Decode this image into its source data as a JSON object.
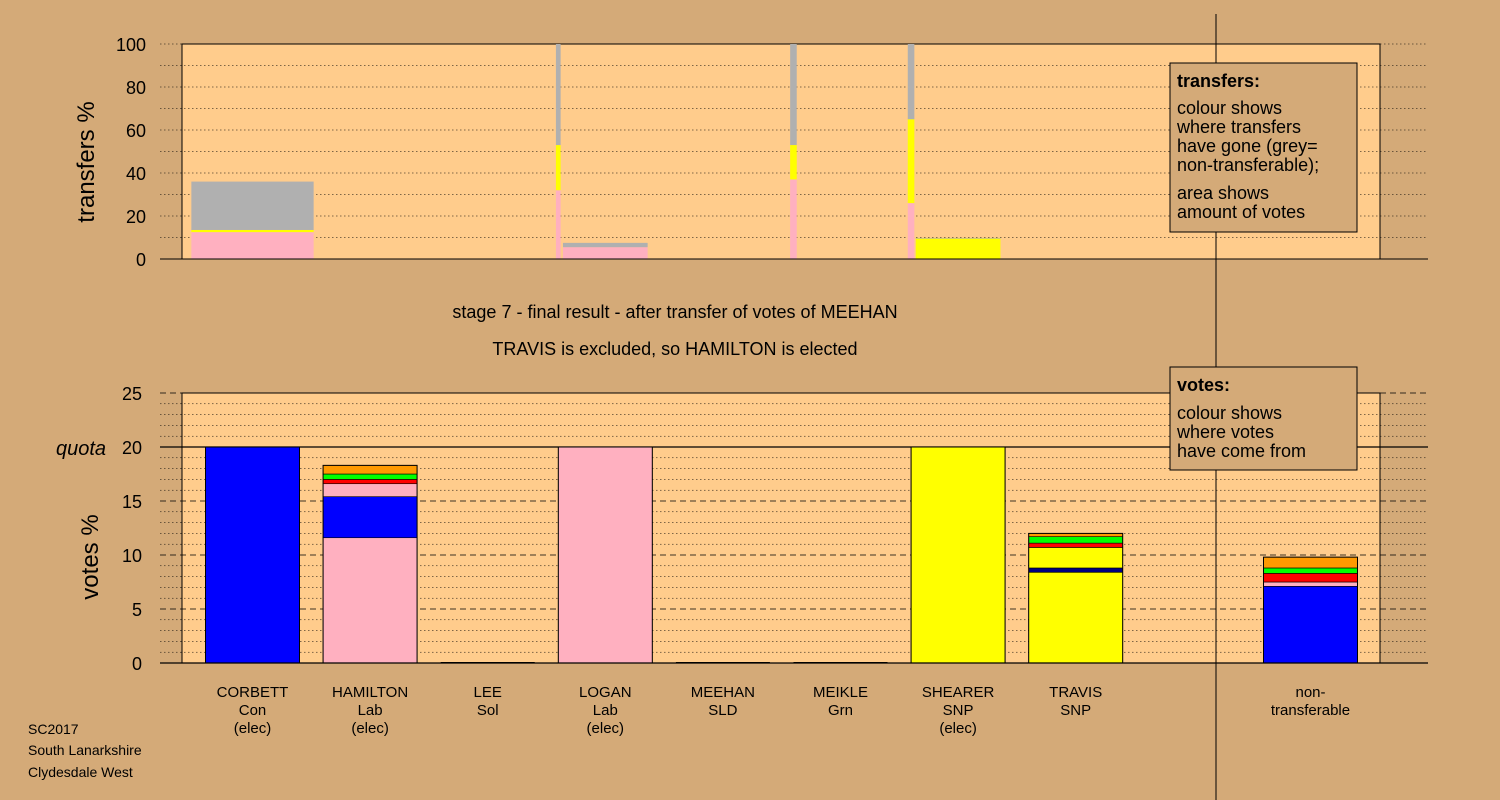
{
  "colors": {
    "background": "#d4aa78",
    "plot_bg": "#ffcc8c",
    "Con": "#0000ff",
    "Lab": "#ffb0c0",
    "SNP": "#ffff00",
    "Grn": "#00ff00",
    "Sol": "#ff0000",
    "SLD": "#ff9900",
    "navy": "#000080",
    "nontransferable": "#b0b0b0"
  },
  "stage_title": "stage 7 - final result - after transfer of votes of MEEHAN",
  "stage_subtitle": "TRAVIS is excluded, so HAMILTON is elected",
  "footer": {
    "line1": "SC2017",
    "line2": "South Lanarkshire",
    "line3": "Clydesdale West"
  },
  "legend_transfers": {
    "title": "transfers:",
    "lines": [
      "colour shows",
      "where transfers",
      "have gone (grey=",
      "non-transferable);",
      "area shows",
      "amount of votes"
    ]
  },
  "legend_votes": {
    "title": "votes:",
    "lines": [
      "colour shows",
      "where votes",
      "have come from"
    ]
  },
  "chart_data": [
    {
      "type": "bar",
      "ylabel": "transfers %",
      "ylim": [
        0,
        100
      ],
      "yticks": [
        0,
        20,
        40,
        60,
        80,
        100
      ],
      "grid": true,
      "bars": [
        {
          "slot": 0,
          "width": 1.3,
          "segments": [
            {
              "color": "Lab",
              "value": 12.5
            },
            {
              "color": "SNP",
              "value": 1
            },
            {
              "color": "nontransferable",
              "value": 22.5
            }
          ]
        },
        {
          "slot": 2.6,
          "width": 0.05,
          "segments": [
            {
              "color": "Lab",
              "value": 32
            },
            {
              "color": "SNP",
              "value": 21
            },
            {
              "color": "nontransferable",
              "value": 47
            }
          ]
        },
        {
          "slot": 3,
          "width": 0.9,
          "segments": [
            {
              "color": "Lab",
              "value": 5.5
            },
            {
              "color": "nontransferable",
              "value": 2
            }
          ]
        },
        {
          "slot": 4.6,
          "width": 0.07,
          "segments": [
            {
              "color": "Lab",
              "value": 37
            },
            {
              "color": "SNP",
              "value": 16
            },
            {
              "color": "nontransferable",
              "value": 47
            }
          ]
        },
        {
          "slot": 5.6,
          "width": 0.07,
          "segments": [
            {
              "color": "Lab",
              "value": 26
            },
            {
              "color": "SNP",
              "value": 39
            },
            {
              "color": "nontransferable",
              "value": 35
            }
          ]
        },
        {
          "slot": 6,
          "width": 0.9,
          "segments": [
            {
              "color": "SNP",
              "value": 9.5
            },
            {
              "color": "nontransferable",
              "value": 0.3
            }
          ]
        }
      ]
    },
    {
      "type": "bar",
      "ylabel": "votes %",
      "ylim": [
        0,
        25
      ],
      "yticks": [
        0,
        5,
        10,
        15,
        20,
        25
      ],
      "quota": 20,
      "quota_label": "quota",
      "grid": true,
      "candidates": [
        {
          "name": "CORBETT",
          "party": "Con",
          "status": "(elec)"
        },
        {
          "name": "HAMILTON",
          "party": "Lab",
          "status": "(elec)"
        },
        {
          "name": "LEE",
          "party": "Sol",
          "status": ""
        },
        {
          "name": "LOGAN",
          "party": "Lab",
          "status": "(elec)"
        },
        {
          "name": "MEEHAN",
          "party": "SLD",
          "status": ""
        },
        {
          "name": "MEIKLE",
          "party": "Grn",
          "status": ""
        },
        {
          "name": "SHEARER",
          "party": "SNP",
          "status": "(elec)"
        },
        {
          "name": "TRAVIS",
          "party": "SNP",
          "status": ""
        }
      ],
      "nontransferable_label": [
        "non-",
        "transferable"
      ],
      "stacks": [
        [
          {
            "color": "Con",
            "value": 20
          }
        ],
        [
          {
            "color": "Lab",
            "value": 11.6
          },
          {
            "color": "Con",
            "value": 3.8
          },
          {
            "color": "Lab",
            "value": 1.2
          },
          {
            "color": "Sol",
            "value": 0.4
          },
          {
            "color": "Grn",
            "value": 0.5
          },
          {
            "color": "SLD",
            "value": 0.8
          }
        ],
        [],
        [
          {
            "color": "Lab",
            "value": 20
          }
        ],
        [],
        [],
        [
          {
            "color": "SNP",
            "value": 20
          }
        ],
        [
          {
            "color": "SNP",
            "value": 8.4
          },
          {
            "color": "navy",
            "value": 0.4
          },
          {
            "color": "SNP",
            "value": 1.9
          },
          {
            "color": "Sol",
            "value": 0.4
          },
          {
            "color": "Grn",
            "value": 0.6
          },
          {
            "color": "SLD",
            "value": 0.3
          }
        ],
        [
          {
            "color": "Con",
            "value": 7.1
          },
          {
            "color": "Lab",
            "value": 0.4
          },
          {
            "color": "Sol",
            "value": 0.8
          },
          {
            "color": "Grn",
            "value": 0.5
          },
          {
            "color": "SLD",
            "value": 1.0
          }
        ]
      ]
    }
  ]
}
